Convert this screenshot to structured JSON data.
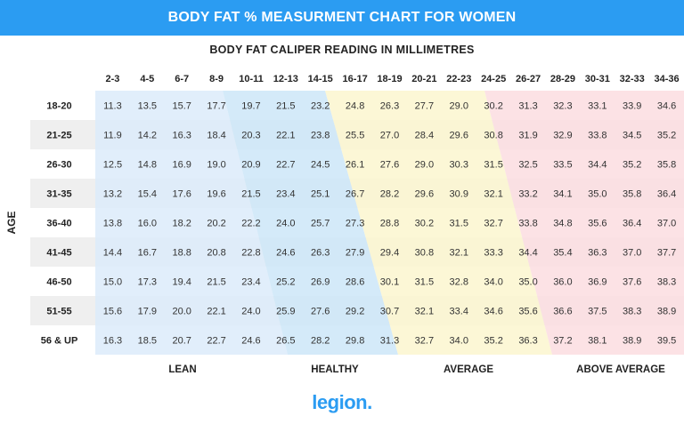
{
  "header": {
    "title": "BODY FAT % MEASURMENT CHART FOR WOMEN"
  },
  "logo": {
    "text": "legion",
    "dot": "."
  },
  "colors": {
    "banner": "#2b9cf2",
    "lean": "#dcebfa",
    "healthy": "#cde6f8",
    "average": "#fbf6cf",
    "above_average": "#fbdde0",
    "row_stripe": "#efefef"
  },
  "chart_data": {
    "type": "table",
    "title": "BODY FAT CALIPER READING IN MILLIMETRES",
    "ylabel": "AGE",
    "columns": [
      "2-3",
      "4-5",
      "6-7",
      "8-9",
      "10-11",
      "12-13",
      "14-15",
      "16-17",
      "18-19",
      "20-21",
      "22-23",
      "24-25",
      "26-27",
      "28-29",
      "30-31",
      "32-33",
      "34-36"
    ],
    "rows": [
      "18-20",
      "21-25",
      "26-30",
      "31-35",
      "36-40",
      "41-45",
      "46-50",
      "51-55",
      "56 & UP"
    ],
    "values": [
      [
        "11.3",
        "13.5",
        "15.7",
        "17.7",
        "19.7",
        "21.5",
        "23.2",
        "24.8",
        "26.3",
        "27.7",
        "29.0",
        "30.2",
        "31.3",
        "32.3",
        "33.1",
        "33.9",
        "34.6"
      ],
      [
        "11.9",
        "14.2",
        "16.3",
        "18.4",
        "20.3",
        "22.1",
        "23.8",
        "25.5",
        "27.0",
        "28.4",
        "29.6",
        "30.8",
        "31.9",
        "32.9",
        "33.8",
        "34.5",
        "35.2"
      ],
      [
        "12.5",
        "14.8",
        "16.9",
        "19.0",
        "20.9",
        "22.7",
        "24.5",
        "26.1",
        "27.6",
        "29.0",
        "30.3",
        "31.5",
        "32.5",
        "33.5",
        "34.4",
        "35.2",
        "35.8"
      ],
      [
        "13.2",
        "15.4",
        "17.6",
        "19.6",
        "21.5",
        "23.4",
        "25.1",
        "26.7",
        "28.2",
        "29.6",
        "30.9",
        "32.1",
        "33.2",
        "34.1",
        "35.0",
        "35.8",
        "36.4"
      ],
      [
        "13.8",
        "16.0",
        "18.2",
        "20.2",
        "22.2",
        "24.0",
        "25.7",
        "27.3",
        "28.8",
        "30.2",
        "31.5",
        "32.7",
        "33.8",
        "34.8",
        "35.6",
        "36.4",
        "37.0"
      ],
      [
        "14.4",
        "16.7",
        "18.8",
        "20.8",
        "22.8",
        "24.6",
        "26.3",
        "27.9",
        "29.4",
        "30.8",
        "32.1",
        "33.3",
        "34.4",
        "35.4",
        "36.3",
        "37.0",
        "37.7"
      ],
      [
        "15.0",
        "17.3",
        "19.4",
        "21.5",
        "23.4",
        "25.2",
        "26.9",
        "28.6",
        "30.1",
        "31.5",
        "32.8",
        "34.0",
        "35.0",
        "36.0",
        "36.9",
        "37.6",
        "38.3"
      ],
      [
        "15.6",
        "17.9",
        "20.0",
        "22.1",
        "24.0",
        "25.9",
        "27.6",
        "29.2",
        "30.7",
        "32.1",
        "33.4",
        "34.6",
        "35.6",
        "36.6",
        "37.5",
        "38.3",
        "38.9"
      ],
      [
        "16.3",
        "18.5",
        "20.7",
        "22.7",
        "24.6",
        "26.5",
        "28.2",
        "29.8",
        "31.3",
        "32.7",
        "34.0",
        "35.2",
        "36.3",
        "37.2",
        "38.1",
        "38.9",
        "39.5"
      ]
    ],
    "categories": [
      {
        "name": "LEAN",
        "color": "#dcebfa"
      },
      {
        "name": "HEALTHY",
        "color": "#cde6f8"
      },
      {
        "name": "AVERAGE",
        "color": "#fbf6cf"
      },
      {
        "name": "ABOVE AVERAGE",
        "color": "#fbdde0"
      }
    ]
  }
}
